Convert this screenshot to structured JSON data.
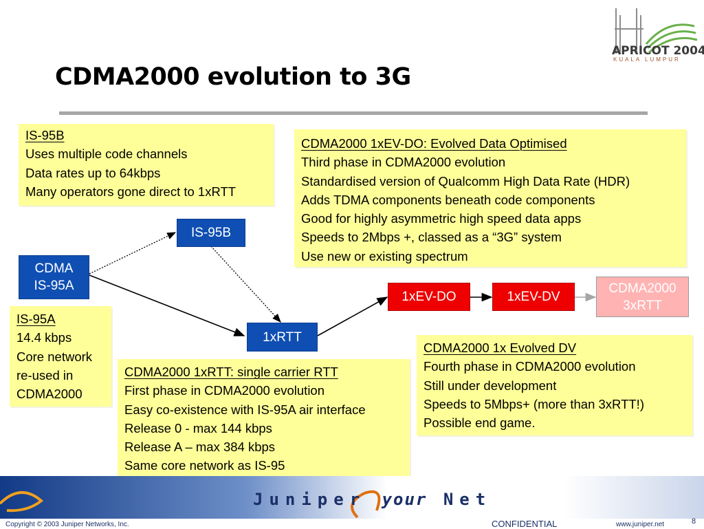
{
  "title": "CDMA2000 evolution to 3G",
  "logo": {
    "line1": "APRICOT 2004",
    "line2": "KUALA LUMPUR"
  },
  "notes": {
    "is95b": {
      "head": "IS-95B",
      "lines": [
        "Uses multiple code channels",
        "Data rates up to 64kbps",
        "Many operators gone direct to 1xRTT"
      ]
    },
    "evdo": {
      "head": "CDMA2000 1xEV-DO: Evolved Data Optimised",
      "lines": [
        "Third phase in CDMA2000 evolution",
        "Standardised version of Qualcomm High Data Rate (HDR)",
        "Adds TDMA components beneath code components",
        "Good for highly asymmetric high speed data apps",
        "Speeds to 2Mbps +, classed as a “3G” system",
        "Use new or existing spectrum"
      ]
    },
    "is95a": {
      "head": "IS-95A",
      "lines": [
        "14.4 kbps",
        "Core network",
        "re-used in",
        "CDMA2000"
      ]
    },
    "rtt": {
      "head": "CDMA2000 1xRTT: single carrier RTT",
      "lines": [
        "First phase in CDMA2000 evolution",
        "Easy co-existence with IS-95A air interface",
        "Release 0 - max 144 kbps",
        "Release A – max 384 kbps",
        "Same core network as IS-95"
      ]
    },
    "evdv": {
      "head": "CDMA2000 1x Evolved DV",
      "lines": [
        "Fourth phase in CDMA2000 evolution",
        "Still under development",
        "Speeds to 5Mbps+ (more than 3xRTT!)",
        "Possible end game."
      ]
    }
  },
  "boxes": {
    "cdma": [
      "CDMA",
      "IS-95A"
    ],
    "is95b": "IS-95B",
    "rtt1x": "1xRTT",
    "evdo": "1xEV-DO",
    "evdv": "1xEV-DV",
    "rtt3x": [
      "CDMA2000",
      "3xRTT"
    ]
  },
  "footer": {
    "brand_left": "Juniper",
    "brand_mid": "your",
    "brand_right": "Net",
    "copyright": "Copyright © 2003 Juniper Networks, Inc.",
    "confidential": "CONFIDENTIAL",
    "website": "www.juniper.net",
    "page": "8"
  },
  "colors": {
    "note_bg": "#ffff99",
    "blue_box": "#0f4fb3",
    "red_box": "#ee0000",
    "pink_box": "#ffb3b3",
    "rule": "#a6a6a6"
  }
}
